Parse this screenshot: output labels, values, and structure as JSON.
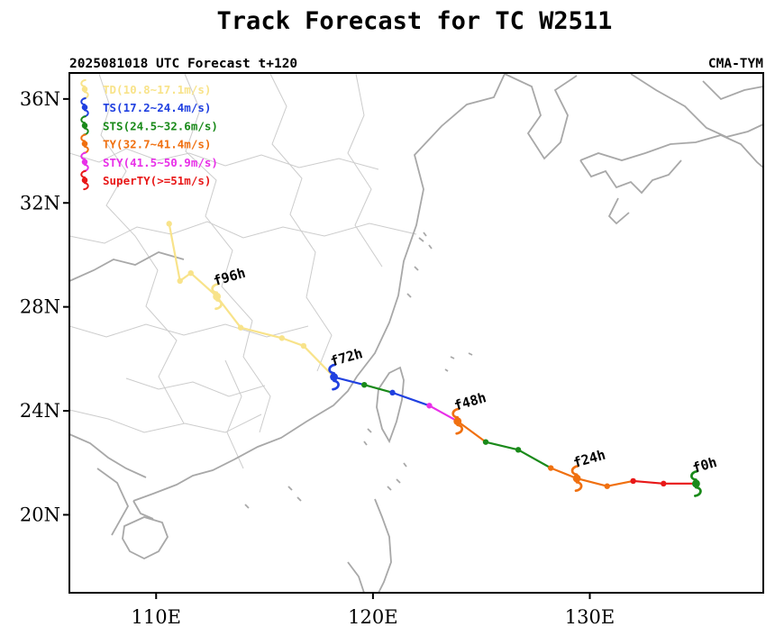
{
  "header": {
    "title": "Track Forecast for TC W2511",
    "subtitle_left": "2025081018 UTC Forecast t+120",
    "subtitle_right": "CMA-TYM"
  },
  "axes": {
    "lon_range": [
      106.0,
      138.0
    ],
    "lat_range": [
      17.0,
      37.0
    ],
    "x_ticks": [
      {
        "value": 110,
        "label": "110E"
      },
      {
        "value": 120,
        "label": "120E"
      },
      {
        "value": 130,
        "label": "130E"
      }
    ],
    "y_ticks": [
      {
        "value": 20,
        "label": "20N"
      },
      {
        "value": 24,
        "label": "24N"
      },
      {
        "value": 28,
        "label": "28N"
      },
      {
        "value": 32,
        "label": "32N"
      },
      {
        "value": 36,
        "label": "36N"
      }
    ]
  },
  "legend": {
    "placement": "top-left",
    "items": [
      {
        "key": "TD",
        "label": "TD(10.8~17.1m/s)",
        "color": "#f8e38a"
      },
      {
        "key": "TS",
        "label": "TS(17.2~24.4m/s)",
        "color": "#2040e0"
      },
      {
        "key": "STS",
        "label": "STS(24.5~32.6m/s)",
        "color": "#1a8a1a"
      },
      {
        "key": "TY",
        "label": "TY(32.7~41.4m/s)",
        "color": "#f07010"
      },
      {
        "key": "STY",
        "label": "STY(41.5~50.9m/s)",
        "color": "#e830e8"
      },
      {
        "key": "SuperTY",
        "label": "SuperTY(>=51m/s)",
        "color": "#e81818"
      }
    ]
  },
  "track": {
    "points": [
      {
        "lon": 134.9,
        "lat": 21.2,
        "cat": "STS"
      },
      {
        "lon": 133.4,
        "lat": 21.2,
        "cat": "SuperTY"
      },
      {
        "lon": 132.0,
        "lat": 21.3,
        "cat": "SuperTY"
      },
      {
        "lon": 130.8,
        "lat": 21.1,
        "cat": "TY"
      },
      {
        "lon": 129.4,
        "lat": 21.4,
        "cat": "TY"
      },
      {
        "lon": 128.2,
        "lat": 21.8,
        "cat": "TY"
      },
      {
        "lon": 126.7,
        "lat": 22.5,
        "cat": "STS"
      },
      {
        "lon": 125.2,
        "lat": 22.8,
        "cat": "STS"
      },
      {
        "lon": 123.9,
        "lat": 23.6,
        "cat": "TY"
      },
      {
        "lon": 122.6,
        "lat": 24.2,
        "cat": "STY"
      },
      {
        "lon": 120.9,
        "lat": 24.7,
        "cat": "TS"
      },
      {
        "lon": 119.6,
        "lat": 25.0,
        "cat": "STS"
      },
      {
        "lon": 118.2,
        "lat": 25.3,
        "cat": "TS"
      },
      {
        "lon": 116.8,
        "lat": 26.5,
        "cat": "TD"
      },
      {
        "lon": 115.8,
        "lat": 26.8,
        "cat": "TD"
      },
      {
        "lon": 113.9,
        "lat": 27.2,
        "cat": "TD"
      },
      {
        "lon": 112.8,
        "lat": 28.4,
        "cat": "TD"
      },
      {
        "lon": 111.6,
        "lat": 29.3,
        "cat": "TD"
      },
      {
        "lon": 111.1,
        "lat": 29.0,
        "cat": "TD"
      },
      {
        "lon": 110.6,
        "lat": 31.2,
        "cat": "TD"
      }
    ],
    "markers": [
      {
        "label": "f0h",
        "lon": 134.9,
        "lat": 21.2,
        "cat": "STS"
      },
      {
        "label": "f24h",
        "lon": 129.4,
        "lat": 21.4,
        "cat": "TY"
      },
      {
        "label": "f48h",
        "lon": 123.9,
        "lat": 23.6,
        "cat": "TY"
      },
      {
        "label": "f72h",
        "lon": 118.2,
        "lat": 25.3,
        "cat": "TS"
      },
      {
        "label": "f96h",
        "lon": 112.8,
        "lat": 28.4,
        "cat": "TD"
      }
    ]
  },
  "colors": {
    "coast": "#a8a8a8",
    "border": "#cccccc",
    "frame": "#000000"
  }
}
